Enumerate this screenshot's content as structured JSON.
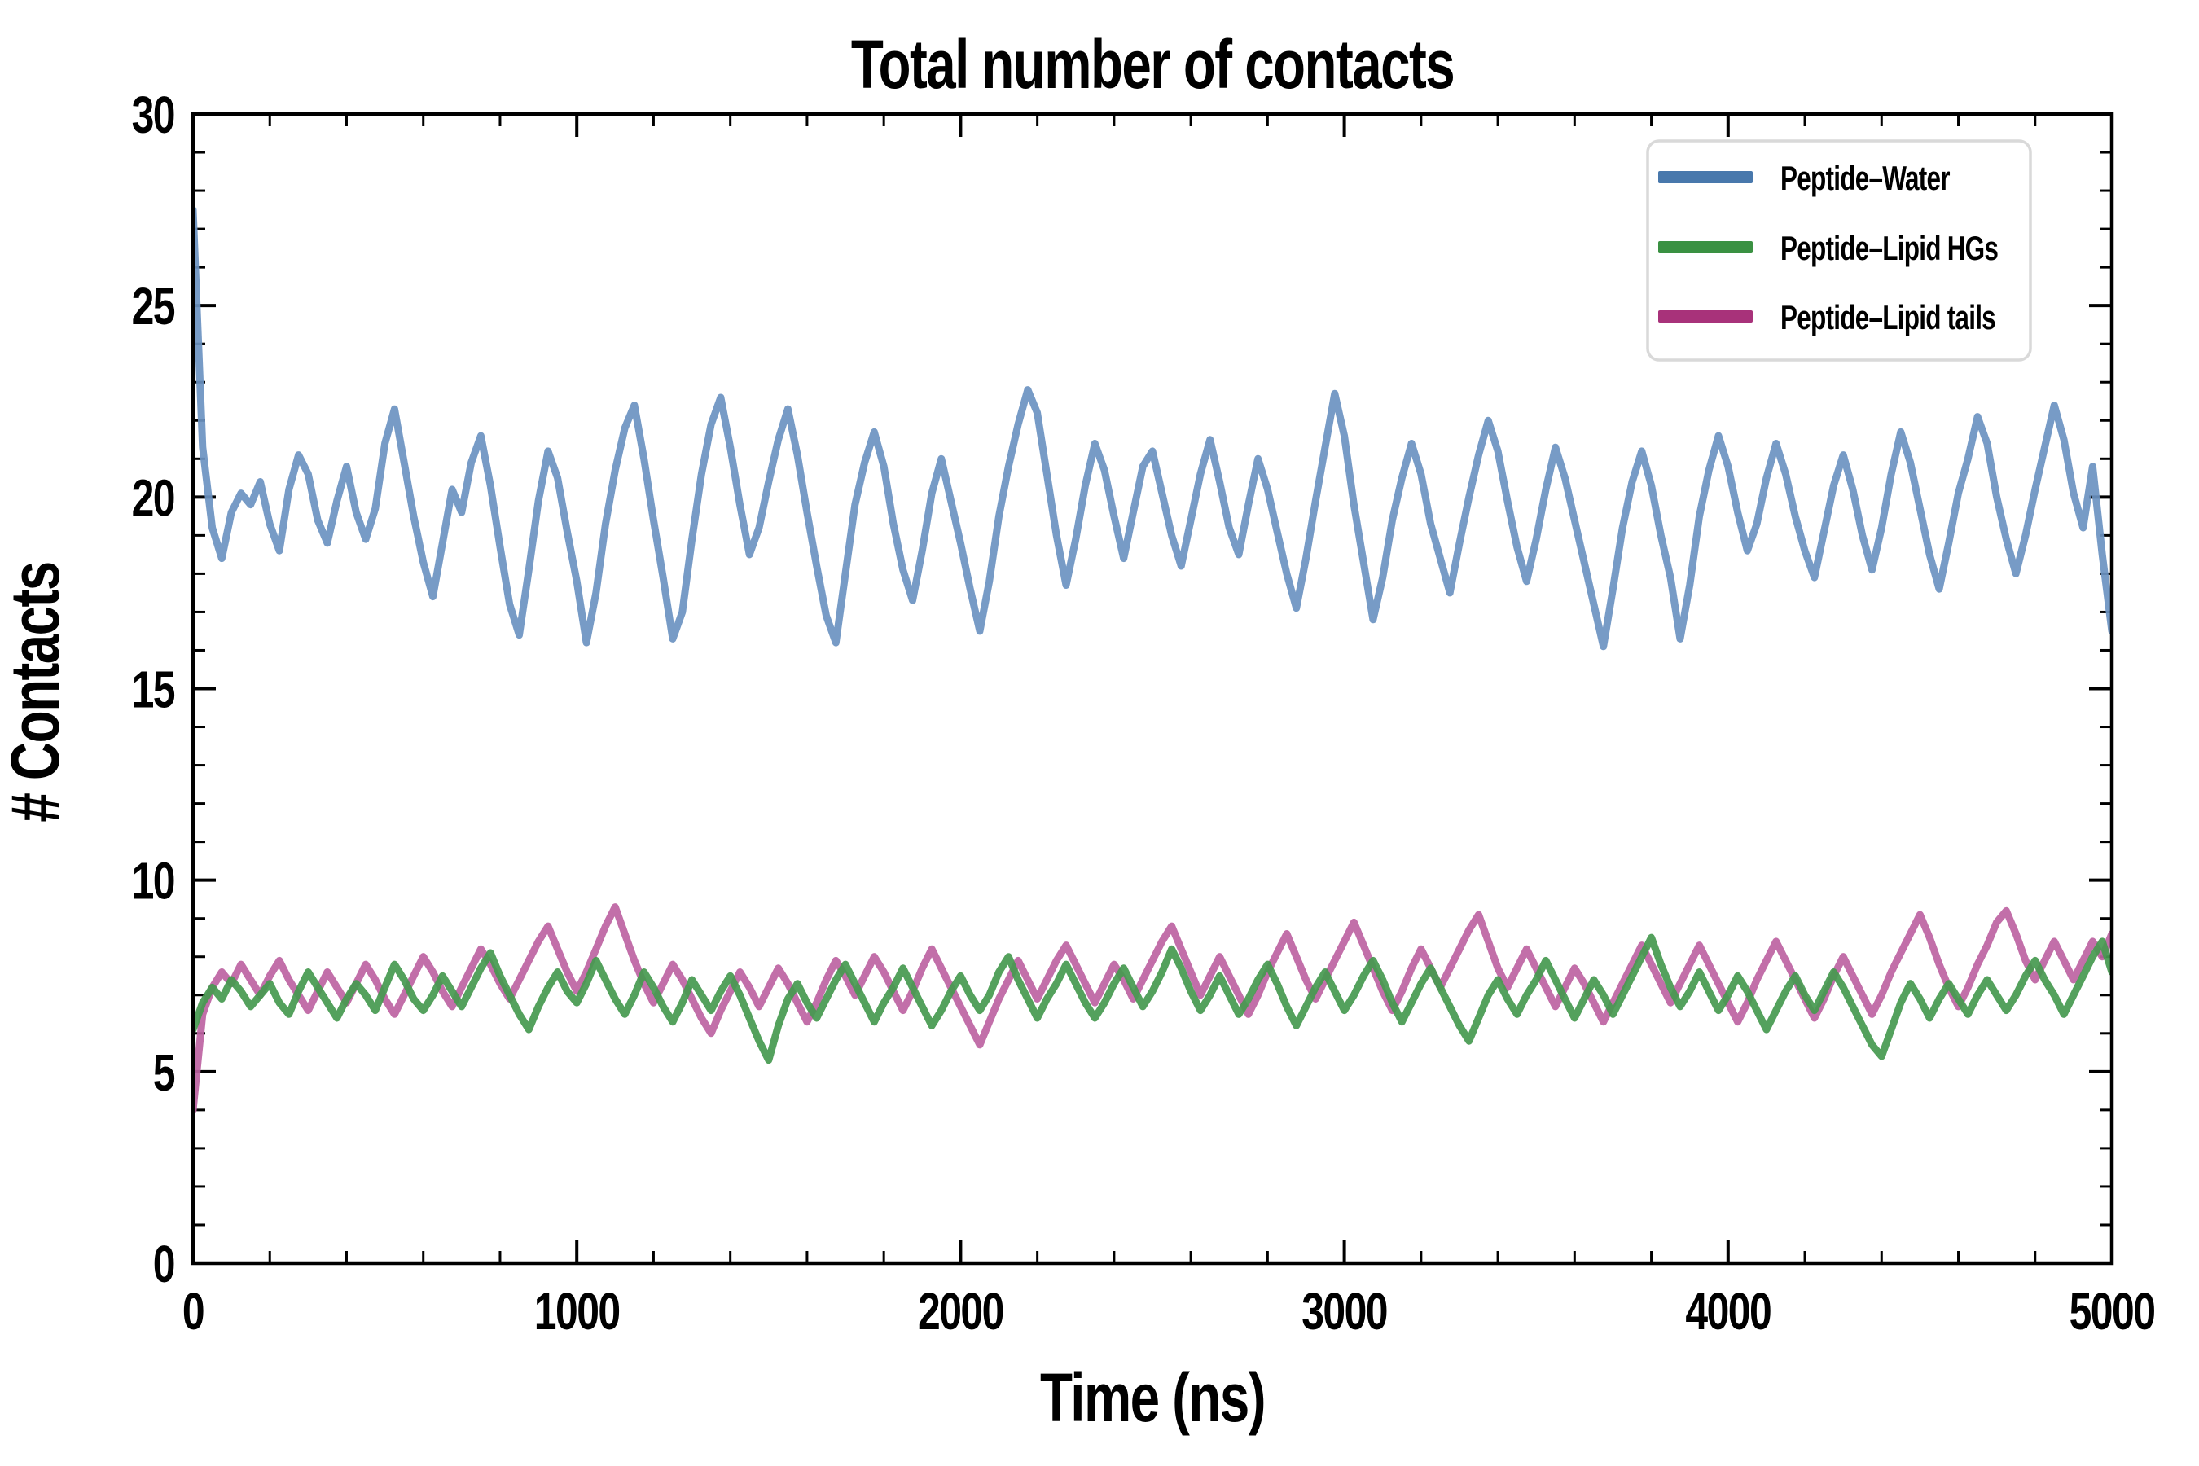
{
  "title": "Total number of contacts",
  "axes": {
    "xlabel": "Time (ns)",
    "ylabel": "# Contacts",
    "xlim": [
      0,
      5000
    ],
    "ylim": [
      0,
      30
    ],
    "x_major_ticks": [
      0,
      1000,
      2000,
      3000,
      4000,
      5000
    ],
    "x_tick_labels": [
      "0",
      "1000",
      "2000",
      "3000",
      "4000",
      "5000"
    ],
    "x_minor_step": 200,
    "y_major_ticks": [
      0,
      5,
      10,
      15,
      20,
      25,
      30
    ],
    "y_tick_labels": [
      "0",
      "5",
      "10",
      "15",
      "20",
      "25",
      "30"
    ],
    "y_minor_step": 1,
    "tick_direction": "in",
    "spine_color": "#000000"
  },
  "legend": {
    "position": "upper-right",
    "border_color": "#d9d9d9",
    "entries": [
      {
        "label": "Peptide–Water",
        "color": "#4878ac"
      },
      {
        "label": "Peptide–Lipid HGs",
        "color": "#3a9142"
      },
      {
        "label": "Peptide–Lipid tails",
        "color": "#a8327a"
      }
    ]
  },
  "chart_data": {
    "type": "line",
    "title": "Total number of contacts",
    "xlabel": "Time (ns)",
    "ylabel": "# Contacts",
    "xlim": [
      0,
      5000
    ],
    "ylim": [
      0,
      30
    ],
    "grid": false,
    "legend_position": "upper-right",
    "sample_interval_ns": 25,
    "series": [
      {
        "name": "Peptide–Water",
        "line_color": "#6b93c1",
        "legend_color": "#4878ac",
        "approx_mean": 19.5,
        "values": [
          27.5,
          21.3,
          19.2,
          18.4,
          19.6,
          20.1,
          19.8,
          20.4,
          19.3,
          18.6,
          20.2,
          21.1,
          20.6,
          19.4,
          18.8,
          19.9,
          20.8,
          19.6,
          18.9,
          19.7,
          21.4,
          22.3,
          20.9,
          19.5,
          18.3,
          17.4,
          18.8,
          20.2,
          19.6,
          20.9,
          21.6,
          20.3,
          18.7,
          17.2,
          16.4,
          18.1,
          19.9,
          21.2,
          20.5,
          19.1,
          17.8,
          16.2,
          17.5,
          19.3,
          20.7,
          21.8,
          22.4,
          21.0,
          19.4,
          17.9,
          16.3,
          17.0,
          18.9,
          20.6,
          21.9,
          22.6,
          21.3,
          19.8,
          18.5,
          19.2,
          20.4,
          21.5,
          22.3,
          21.1,
          19.6,
          18.2,
          16.9,
          16.2,
          18.0,
          19.8,
          20.9,
          21.7,
          20.8,
          19.3,
          18.1,
          17.3,
          18.6,
          20.1,
          21.0,
          19.9,
          18.8,
          17.6,
          16.5,
          17.8,
          19.5,
          20.8,
          21.9,
          22.8,
          22.2,
          20.6,
          19.0,
          17.7,
          18.9,
          20.3,
          21.4,
          20.7,
          19.5,
          18.4,
          19.6,
          20.8,
          21.2,
          20.1,
          19.0,
          18.2,
          19.4,
          20.6,
          21.5,
          20.4,
          19.2,
          18.5,
          19.8,
          21.0,
          20.2,
          19.1,
          18.0,
          17.1,
          18.4,
          19.9,
          21.3,
          22.7,
          21.6,
          19.8,
          18.3,
          16.8,
          17.9,
          19.4,
          20.5,
          21.4,
          20.6,
          19.3,
          18.4,
          17.5,
          18.8,
          20.0,
          21.1,
          22.0,
          21.2,
          19.9,
          18.7,
          17.8,
          18.9,
          20.2,
          21.3,
          20.5,
          19.4,
          18.3,
          17.2,
          16.1,
          17.6,
          19.2,
          20.4,
          21.2,
          20.3,
          19.0,
          17.9,
          16.3,
          17.7,
          19.5,
          20.7,
          21.6,
          20.8,
          19.6,
          18.6,
          19.3,
          20.5,
          21.4,
          20.6,
          19.5,
          18.6,
          17.9,
          19.1,
          20.3,
          21.1,
          20.2,
          19.0,
          18.1,
          19.2,
          20.6,
          21.7,
          20.9,
          19.7,
          18.5,
          17.6,
          18.8,
          20.1,
          21.0,
          22.1,
          21.4,
          20.0,
          18.9,
          18.0,
          19.0,
          20.2,
          21.3,
          22.4,
          21.5,
          20.1,
          19.2,
          20.8,
          18.5,
          16.5
        ]
      },
      {
        "name": "Peptide–Lipid HGs",
        "line_color": "#45994f",
        "legend_color": "#3a9142",
        "approx_mean": 7.0,
        "values": [
          6.1,
          6.8,
          7.2,
          6.9,
          7.4,
          7.1,
          6.7,
          7.0,
          7.3,
          6.8,
          6.5,
          7.1,
          7.6,
          7.2,
          6.8,
          6.4,
          6.9,
          7.3,
          7.0,
          6.6,
          7.2,
          7.8,
          7.4,
          6.9,
          6.6,
          7.0,
          7.5,
          7.1,
          6.7,
          7.2,
          7.7,
          8.1,
          7.5,
          7.0,
          6.5,
          6.1,
          6.7,
          7.2,
          7.6,
          7.1,
          6.8,
          7.3,
          7.9,
          7.4,
          6.9,
          6.5,
          7.0,
          7.6,
          7.2,
          6.7,
          6.3,
          6.8,
          7.4,
          7.0,
          6.6,
          7.1,
          7.5,
          7.0,
          6.4,
          5.8,
          5.3,
          6.2,
          6.9,
          7.3,
          6.8,
          6.4,
          6.9,
          7.4,
          7.8,
          7.3,
          6.8,
          6.3,
          6.8,
          7.2,
          7.7,
          7.2,
          6.7,
          6.2,
          6.6,
          7.1,
          7.5,
          7.0,
          6.6,
          7.0,
          7.6,
          8.0,
          7.4,
          6.9,
          6.4,
          6.9,
          7.3,
          7.8,
          7.3,
          6.8,
          6.4,
          6.8,
          7.3,
          7.7,
          7.2,
          6.7,
          7.1,
          7.6,
          8.2,
          7.7,
          7.1,
          6.6,
          7.0,
          7.5,
          7.0,
          6.5,
          6.9,
          7.4,
          7.8,
          7.3,
          6.7,
          6.2,
          6.7,
          7.2,
          7.6,
          7.1,
          6.6,
          7.0,
          7.5,
          7.9,
          7.4,
          6.8,
          6.3,
          6.8,
          7.3,
          7.7,
          7.2,
          6.7,
          6.2,
          5.8,
          6.4,
          7.0,
          7.4,
          6.9,
          6.5,
          7.0,
          7.4,
          7.9,
          7.4,
          6.9,
          6.4,
          6.9,
          7.4,
          7.0,
          6.5,
          7.0,
          7.5,
          8.0,
          8.5,
          7.8,
          7.2,
          6.7,
          7.1,
          7.6,
          7.1,
          6.6,
          7.0,
          7.5,
          7.1,
          6.6,
          6.1,
          6.6,
          7.1,
          7.5,
          7.0,
          6.6,
          7.1,
          7.6,
          7.2,
          6.7,
          6.2,
          5.7,
          5.4,
          6.1,
          6.8,
          7.3,
          6.9,
          6.4,
          6.9,
          7.3,
          6.9,
          6.5,
          7.0,
          7.4,
          7.0,
          6.6,
          7.0,
          7.5,
          7.9,
          7.4,
          7.0,
          6.5,
          7.0,
          7.5,
          8.0,
          8.4,
          7.6
        ]
      },
      {
        "name": "Peptide–Lipid tails",
        "line_color": "#bd63a2",
        "legend_color": "#a8327a",
        "approx_mean": 7.4,
        "values": [
          4.0,
          6.5,
          7.2,
          7.6,
          7.3,
          7.8,
          7.4,
          7.0,
          7.5,
          7.9,
          7.4,
          7.0,
          6.6,
          7.1,
          7.6,
          7.2,
          6.8,
          7.3,
          7.8,
          7.4,
          6.9,
          6.5,
          7.0,
          7.5,
          8.0,
          7.6,
          7.1,
          6.7,
          7.2,
          7.7,
          8.2,
          7.8,
          7.3,
          6.9,
          7.4,
          7.9,
          8.4,
          8.8,
          8.2,
          7.6,
          7.1,
          7.6,
          8.2,
          8.8,
          9.3,
          8.6,
          7.9,
          7.3,
          6.8,
          7.3,
          7.8,
          7.4,
          6.9,
          6.4,
          6.0,
          6.6,
          7.1,
          7.6,
          7.2,
          6.7,
          7.2,
          7.7,
          7.3,
          6.8,
          6.3,
          6.8,
          7.4,
          7.9,
          7.5,
          7.0,
          7.5,
          8.0,
          7.6,
          7.1,
          6.6,
          7.1,
          7.7,
          8.2,
          7.7,
          7.2,
          6.7,
          6.2,
          5.7,
          6.3,
          6.9,
          7.4,
          7.9,
          7.4,
          6.9,
          7.4,
          7.9,
          8.3,
          7.8,
          7.3,
          6.8,
          7.3,
          7.8,
          7.4,
          6.9,
          7.4,
          7.9,
          8.4,
          8.8,
          8.2,
          7.6,
          7.0,
          7.5,
          8.0,
          7.5,
          7.0,
          6.5,
          7.0,
          7.6,
          8.1,
          8.6,
          8.0,
          7.4,
          6.9,
          7.4,
          7.9,
          8.4,
          8.9,
          8.3,
          7.7,
          7.1,
          6.6,
          7.1,
          7.7,
          8.2,
          7.7,
          7.2,
          7.7,
          8.2,
          8.7,
          9.1,
          8.4,
          7.7,
          7.2,
          7.7,
          8.2,
          7.7,
          7.2,
          6.7,
          7.2,
          7.7,
          7.3,
          6.8,
          6.3,
          6.8,
          7.3,
          7.8,
          8.3,
          7.8,
          7.3,
          6.8,
          7.3,
          7.8,
          8.3,
          7.8,
          7.3,
          6.8,
          6.3,
          6.8,
          7.4,
          7.9,
          8.4,
          7.9,
          7.4,
          6.9,
          6.4,
          6.9,
          7.5,
          8.0,
          7.5,
          7.0,
          6.5,
          7.0,
          7.6,
          8.1,
          8.6,
          9.1,
          8.5,
          7.8,
          7.2,
          6.7,
          7.2,
          7.8,
          8.3,
          8.9,
          9.2,
          8.6,
          7.9,
          7.4,
          7.9,
          8.4,
          7.9,
          7.4,
          7.9,
          8.4,
          8.0,
          8.6
        ]
      }
    ]
  }
}
